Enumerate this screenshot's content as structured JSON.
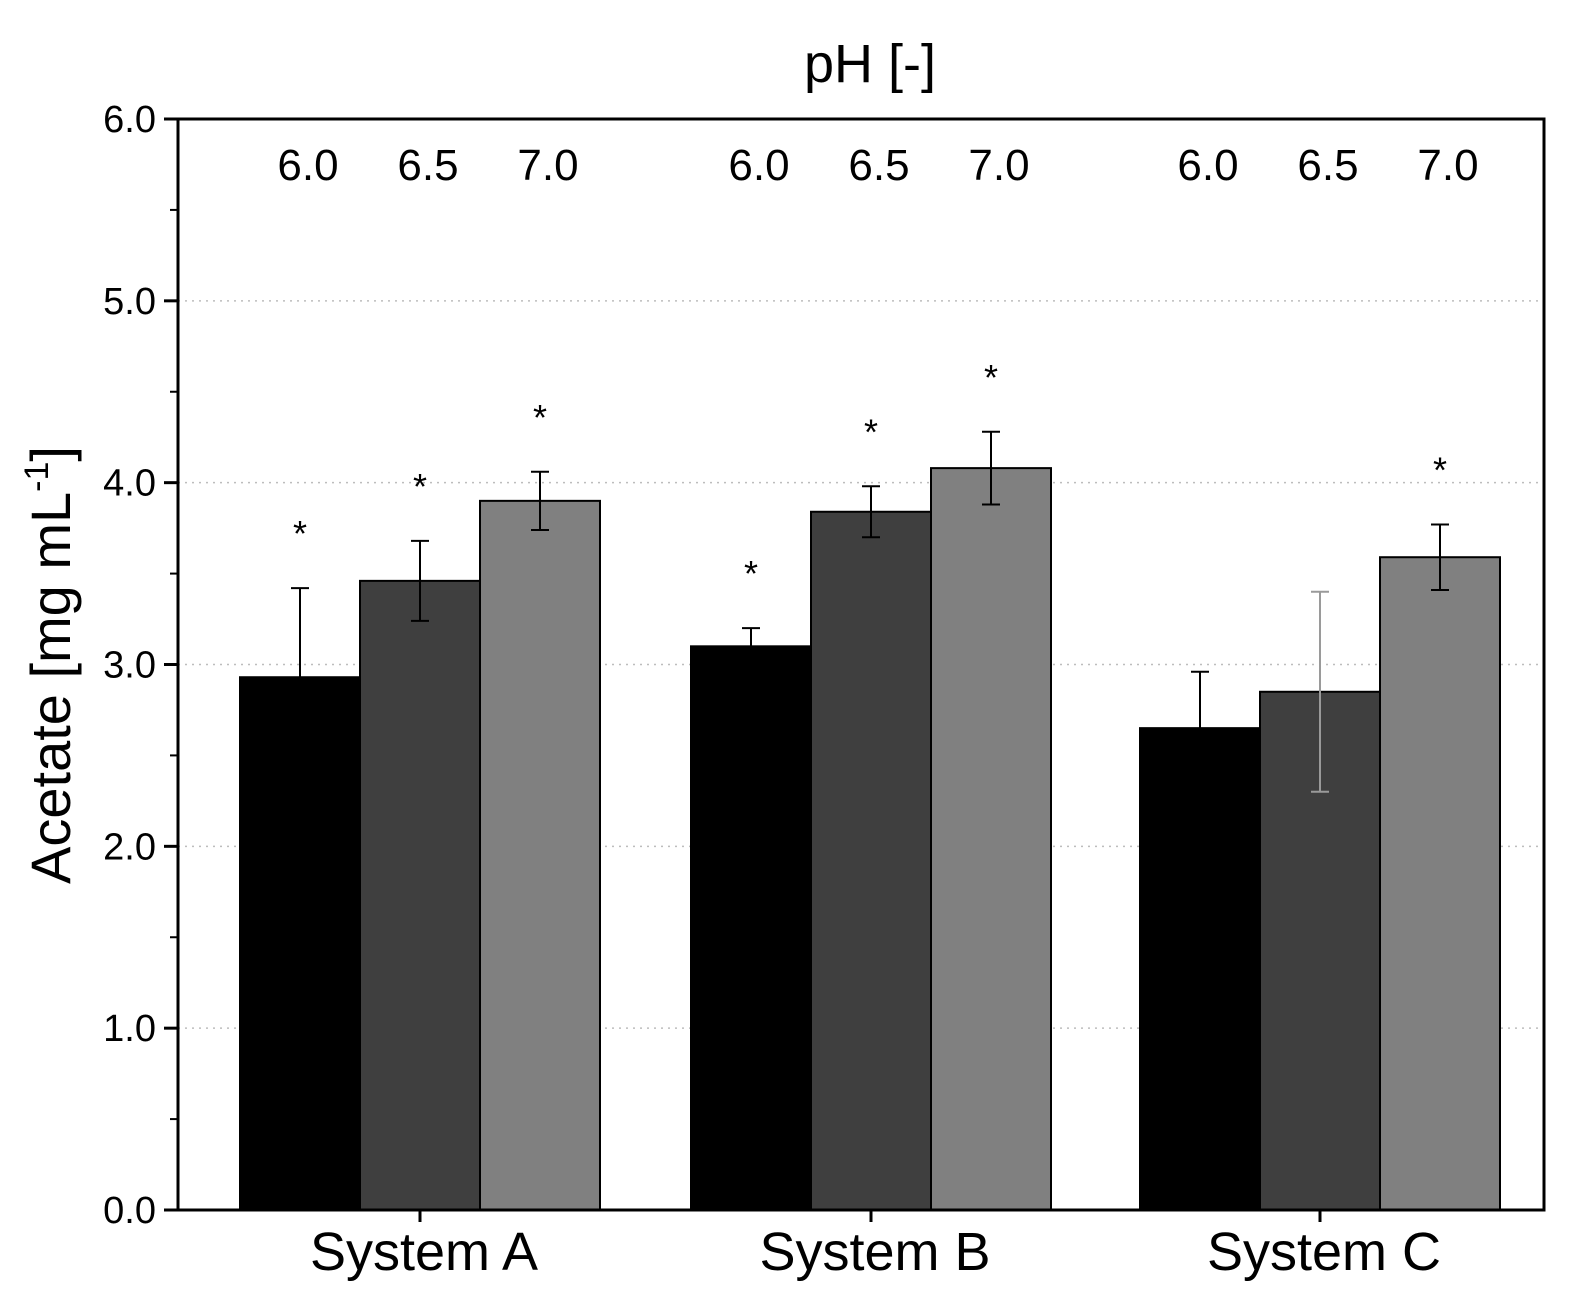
{
  "chart_data": {
    "type": "bar",
    "title": "pH [-]",
    "xlabel": "",
    "ylabel": "Acetate [mg mL",
    "ylabel_sup": "-1",
    "ylabel_suffix": "]",
    "ylim": [
      0,
      6
    ],
    "yticks": [
      "0.0",
      "1.0",
      "2.0",
      "3.0",
      "4.0",
      "5.0",
      "6.0"
    ],
    "grid": "horizontal dotted",
    "legend": "none",
    "categories": [
      "System A",
      "System B",
      "System C"
    ],
    "series": [
      {
        "name": "6.0",
        "color": "#000000",
        "values": [
          2.93,
          3.1,
          2.65
        ],
        "errors": [
          0.49,
          0.1,
          0.31
        ],
        "significant": [
          true,
          true,
          false
        ]
      },
      {
        "name": "6.5",
        "color": "#3f3f3f",
        "values": [
          3.46,
          3.84,
          2.85
        ],
        "errors": [
          0.22,
          0.14,
          0.55
        ],
        "significant": [
          true,
          true,
          false
        ]
      },
      {
        "name": "7.0",
        "color": "#808080",
        "values": [
          3.9,
          4.08,
          3.59
        ],
        "errors": [
          0.16,
          0.2,
          0.18
        ],
        "significant": [
          true,
          true,
          true
        ]
      }
    ],
    "significance_marker": "*"
  }
}
